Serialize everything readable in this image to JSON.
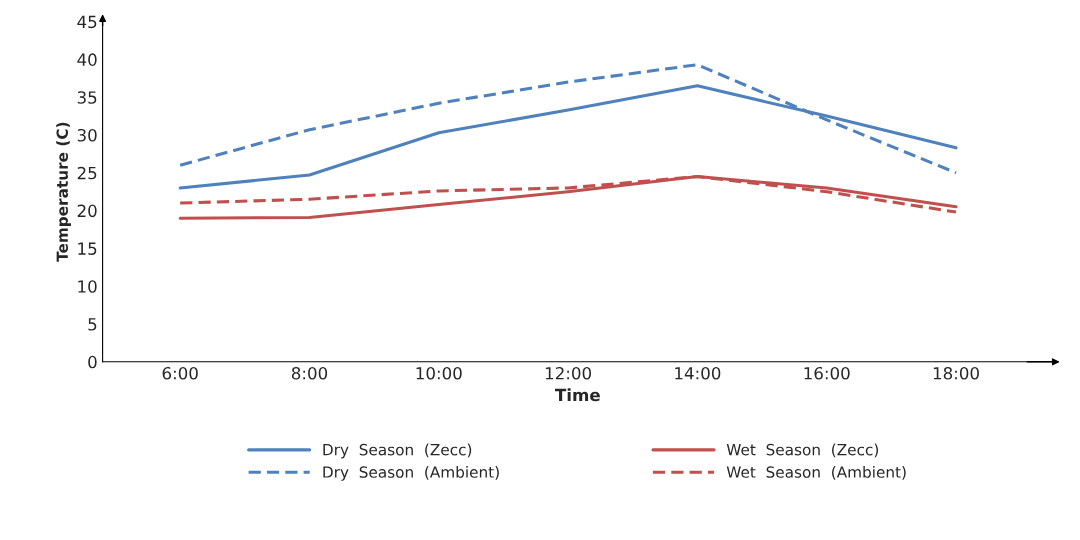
{
  "chart_data": {
    "type": "line",
    "xlabel": "Time",
    "ylabel": "Temperature (C)",
    "categories": [
      "6:00",
      "8:00",
      "10:00",
      "12:00",
      "14:00",
      "16:00",
      "18:00"
    ],
    "series": [
      {
        "name": "Dry  Season  (Zecc)",
        "color": "#4f81bd",
        "line_style": "solid",
        "values": [
          23,
          24.7,
          30.3,
          33.3,
          36.5,
          32.5,
          28.3
        ]
      },
      {
        "name": "Dry  Season  (Ambient)",
        "color": "#4f81bd",
        "line_style": "dashed",
        "values": [
          26,
          30.7,
          34.2,
          37,
          39.3,
          32,
          25
        ]
      },
      {
        "name": "Wet  Season  (Zecc)",
        "color": "#c0504d",
        "line_style": "solid",
        "values": [
          19,
          19.1,
          20.8,
          22.5,
          24.5,
          23,
          20.5
        ]
      },
      {
        "name": "Wet  Season  (Ambient)",
        "color": "#c0504d",
        "line_style": "dashed",
        "values": [
          21,
          21.5,
          22.6,
          23,
          24.5,
          22.5,
          19.8
        ]
      }
    ],
    "ylim": [
      0,
      45
    ],
    "yticks": [
      0,
      5,
      10,
      15,
      20,
      25,
      30,
      35,
      40,
      45
    ],
    "grid": false,
    "legend": "bottom",
    "marker": "none"
  }
}
